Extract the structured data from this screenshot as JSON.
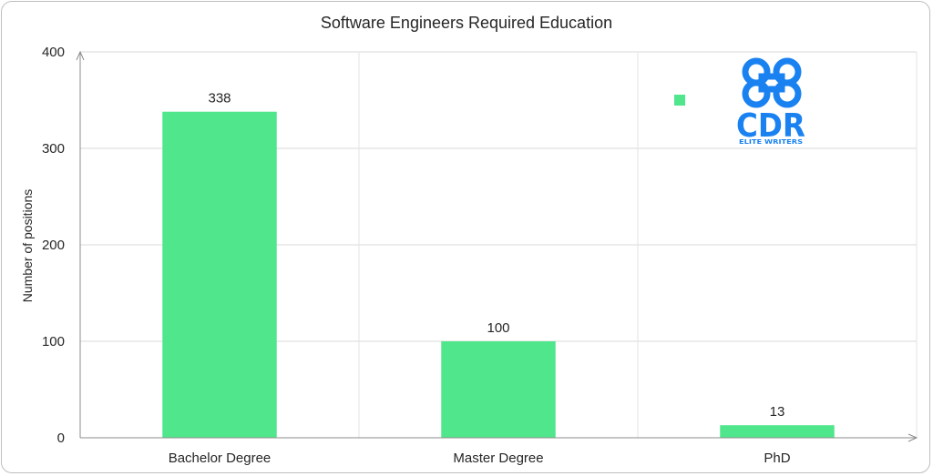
{
  "chart_data": {
    "type": "bar",
    "title": "Software Engineers Required Education",
    "xlabel": "",
    "ylabel": "Number of positions",
    "categories": [
      "Bachelor Degree",
      "Master Degree",
      "PhD"
    ],
    "values": [
      338,
      100,
      13
    ],
    "data_labels": [
      "338",
      "100",
      "13"
    ],
    "ylim": [
      0,
      400
    ],
    "yticks": [
      0,
      100,
      200,
      300,
      400
    ],
    "grid": true,
    "legend": "hidden",
    "bar_color": "#4fe68c"
  },
  "logo": {
    "text_main": "CDR",
    "text_sub": "ELITE WRITERS",
    "color": "#1a82f0"
  }
}
